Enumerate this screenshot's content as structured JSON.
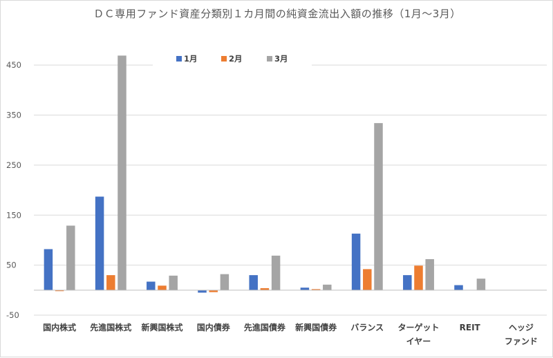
{
  "chart_data": {
    "type": "bar",
    "title": "ＤＣ専用ファンド資産分類別１カ月間の純資金流出入額の推移（1月～3月）",
    "categories": [
      [
        "国内株式"
      ],
      [
        "先進国株式"
      ],
      [
        "新興国株式"
      ],
      [
        "国内債券"
      ],
      [
        "先進国債券"
      ],
      [
        "新興国債券"
      ],
      [
        "バランス"
      ],
      [
        "ターゲット",
        "イヤー"
      ],
      [
        "REIT"
      ],
      [
        "ヘッジ",
        "ファンド"
      ]
    ],
    "series": [
      {
        "name": "1月",
        "color": "#4472C4",
        "values": [
          82,
          187,
          17,
          -5,
          30,
          5,
          113,
          30,
          10,
          0
        ]
      },
      {
        "name": "2月",
        "color": "#ED7D31",
        "values": [
          -2,
          30,
          9,
          -4,
          4,
          2,
          42,
          49,
          0,
          0
        ]
      },
      {
        "name": "3月",
        "color": "#A5A5A5",
        "values": [
          129,
          469,
          29,
          32,
          69,
          11,
          334,
          62,
          23,
          0
        ]
      }
    ],
    "y_ticks": [
      -50,
      50,
      150,
      250,
      350,
      450
    ],
    "ylim": [
      -50,
      500
    ],
    "xlabel": "",
    "ylabel": "",
    "grid": true,
    "legend_position": "top-center"
  }
}
